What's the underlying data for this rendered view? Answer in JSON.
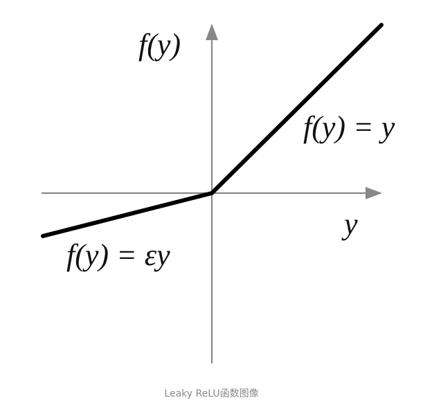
{
  "chart_data": {
    "type": "line",
    "series": [
      {
        "name": "",
        "x": [
          -1,
          0,
          1
        ],
        "y": [
          -0.25,
          0,
          1
        ]
      }
    ],
    "labels": {
      "y_axis": "f(y)",
      "x_axis": "y",
      "positive_branch": "f(y) = y",
      "negative_branch": "f(y) = εy"
    },
    "grid": false
  },
  "caption": "Leaky ReLU函数图像",
  "colors": {
    "axis": "#888888",
    "curve": "#000000",
    "caption": "#8a8a8a"
  }
}
